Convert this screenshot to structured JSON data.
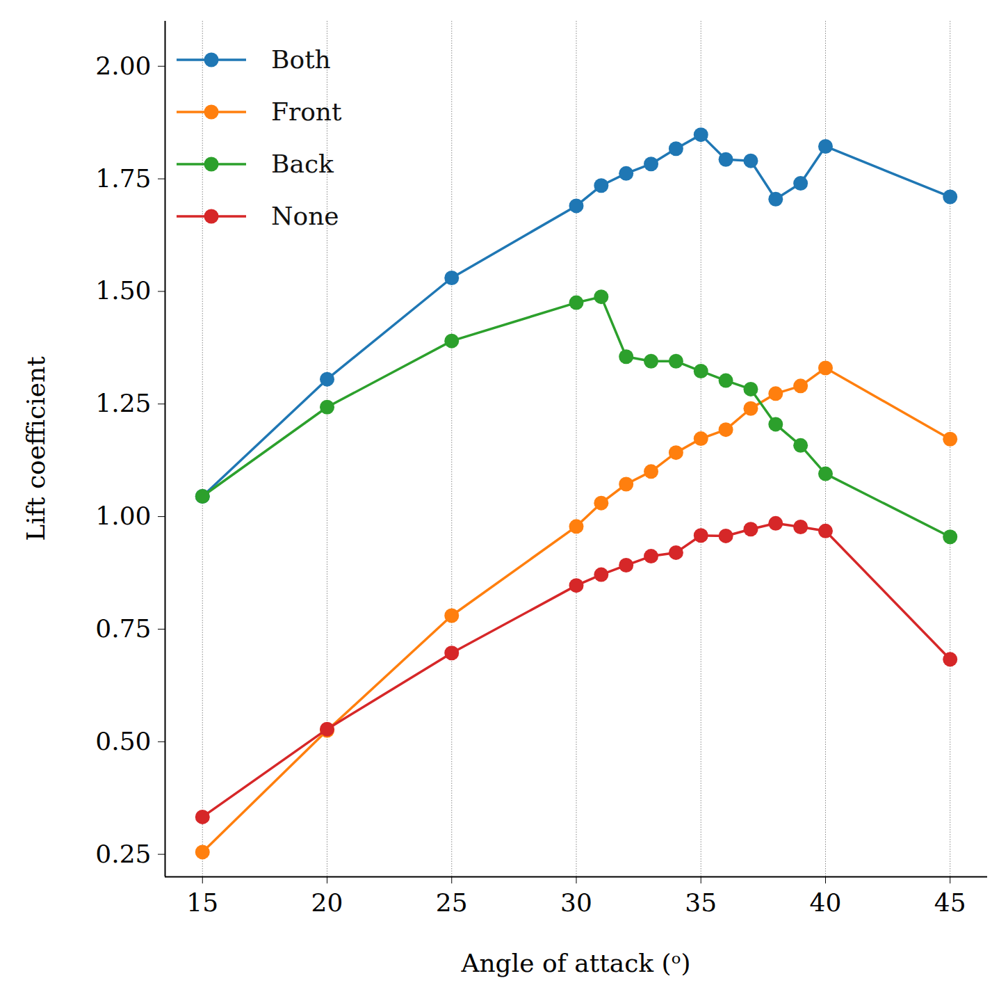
{
  "chart_data": {
    "type": "line",
    "x_label": "Angle of attack (ᵒ)",
    "y_label": "Lift coefficient",
    "x": [
      15,
      20,
      25,
      30,
      31,
      32,
      33,
      34,
      35,
      36,
      37,
      38,
      39,
      40,
      45
    ],
    "series": [
      {
        "name": "Both",
        "color": "#1f77b4",
        "marker": "circle",
        "values": [
          1.045,
          1.305,
          1.53,
          1.69,
          1.735,
          1.762,
          1.783,
          1.817,
          1.848,
          1.793,
          1.79,
          1.705,
          1.74,
          1.822,
          1.71
        ]
      },
      {
        "name": "Front",
        "color": "#ff7f0e",
        "marker": "circle",
        "values": [
          0.255,
          0.525,
          0.78,
          0.978,
          1.03,
          1.072,
          1.1,
          1.142,
          1.173,
          1.193,
          1.24,
          1.273,
          1.29,
          1.33,
          1.172
        ]
      },
      {
        "name": "Back",
        "color": "#2ca02c",
        "marker": "circle",
        "values": [
          1.045,
          1.243,
          1.39,
          1.475,
          1.488,
          1.355,
          1.345,
          1.345,
          1.323,
          1.302,
          1.283,
          1.205,
          1.158,
          1.095,
          0.955
        ]
      },
      {
        "name": "None",
        "color": "#d62728",
        "marker": "circle",
        "values": [
          0.333,
          0.528,
          0.697,
          0.847,
          0.871,
          0.892,
          0.912,
          0.92,
          0.958,
          0.957,
          0.972,
          0.985,
          0.977,
          0.968,
          0.683
        ]
      }
    ],
    "xlim": [
      13.5,
      46.5
    ],
    "ylim": [
      0.2,
      2.1
    ],
    "xticks": [
      15,
      20,
      25,
      30,
      35,
      40,
      45
    ],
    "yticks": [
      0.25,
      {
        "value": 0.5,
        "label": "0.50"
      },
      0.75,
      {
        "value": 1,
        "label": "1.00"
      },
      1.25,
      {
        "value": 1.5,
        "label": "1.50"
      },
      1.75,
      {
        "value": 2,
        "label": "2.00"
      }
    ],
    "grid": "x",
    "legend": "upper left"
  }
}
